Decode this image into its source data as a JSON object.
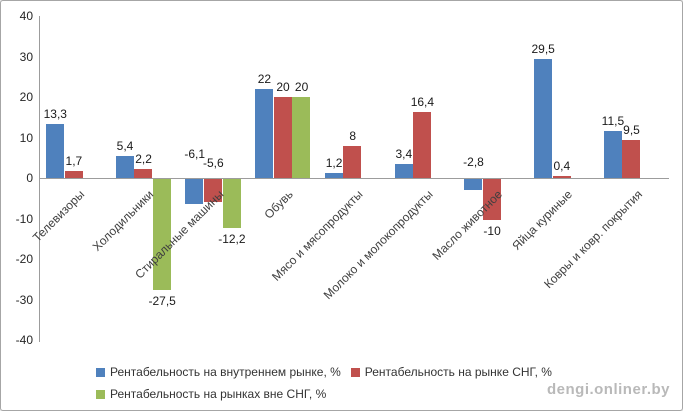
{
  "watermark": "dengi.onliner.by",
  "chart_data": {
    "type": "bar",
    "title": "",
    "xlabel": "",
    "ylabel": "",
    "categories": [
      "Телевизоры",
      "Холодильники",
      "Стиральные машины",
      "Обувь",
      "Мясо и мясопродукты",
      "Молоко и молокопродукты",
      "Масло животное",
      "Яйца куриные",
      "Ковры и ковр. покрытия"
    ],
    "series": [
      {
        "name": "Рентабельность на внутреннем рынке, %",
        "color": "#4f81bd",
        "values": [
          13.3,
          5.4,
          -6.1,
          22,
          1.2,
          3.4,
          -2.8,
          29.5,
          11.5
        ],
        "labels": [
          "13,3",
          "5,4",
          "-6,1",
          "22",
          "1,2",
          "3,4",
          "-2,8",
          "29,5",
          "11,5"
        ]
      },
      {
        "name": "Рентабельность на рынке СНГ, %",
        "color": "#c0504d",
        "values": [
          1.7,
          2.2,
          -5.6,
          20,
          8,
          16.4,
          -10,
          0.4,
          9.5
        ],
        "labels": [
          "1,7",
          "2,2",
          "-5,6",
          "20",
          "8",
          "16,4",
          "-10",
          "0,4",
          "9,5"
        ]
      },
      {
        "name": "Рентабельность на рынках вне СНГ, %",
        "color": "#9bbb59",
        "values": [
          null,
          -27.5,
          -12.2,
          20,
          null,
          null,
          null,
          null,
          null
        ],
        "labels": [
          null,
          "-27,5",
          "-12,2",
          "20",
          null,
          null,
          null,
          null,
          null
        ]
      }
    ],
    "ylim": [
      -40,
      40
    ],
    "yticks": [
      40,
      30,
      20,
      10,
      0,
      -10,
      -20,
      -30,
      -40
    ],
    "grid": false,
    "legend_position": "bottom",
    "label_layout_hints": {
      "above_axis": [
        {
          "s": 0,
          "c": 2,
          "top": 147
        },
        {
          "s": 1,
          "c": 2,
          "top": 156
        },
        {
          "s": 0,
          "c": 6,
          "top": 155
        }
      ]
    }
  }
}
